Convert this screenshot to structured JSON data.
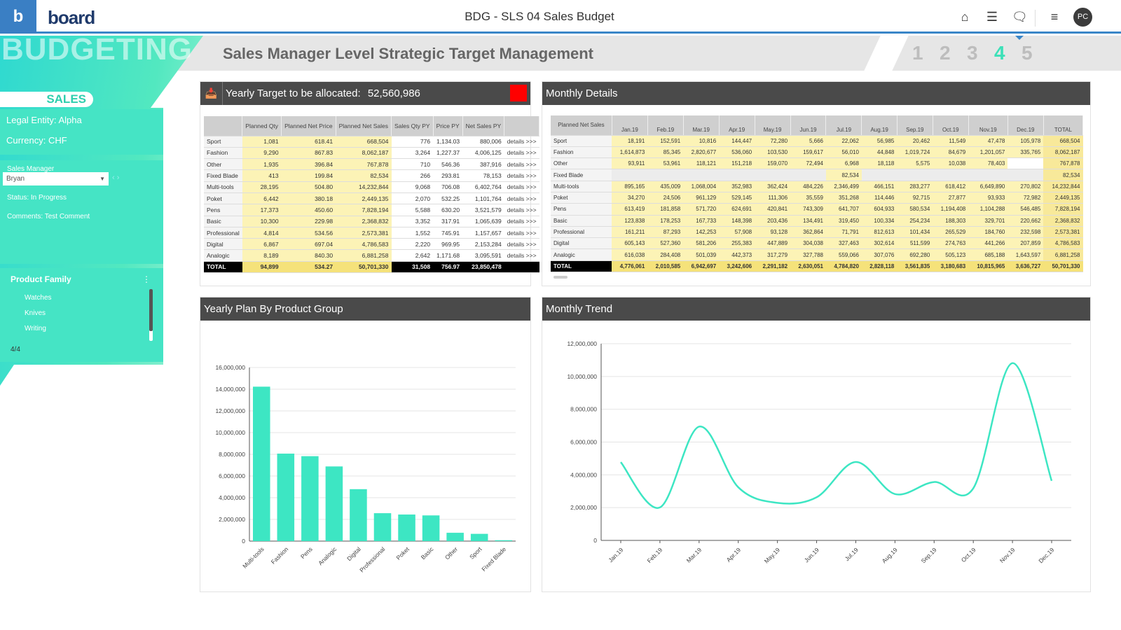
{
  "header": {
    "logo_letter": "b",
    "brand": "board",
    "title": "BDG - SLS 04 Sales Budget",
    "avatar": "PC"
  },
  "banner": {
    "section": "BUDGETING",
    "page_title": "Sales Manager Level Strategic Target Management",
    "steps": [
      "1",
      "2",
      "3",
      "4",
      "5"
    ],
    "active_step": "4"
  },
  "sidebar": {
    "tab": "SALES",
    "legal_entity": "Legal Entity: Alpha",
    "currency": "Currency:  CHF",
    "sales_manager_label": "Sales Manager",
    "sales_manager_value": "Bryan",
    "status": "Status:  In Progress",
    "comments": "Comments: Test Comment",
    "product_family_title": "Product Family",
    "product_family_items": [
      "Watches",
      "Knives",
      "Writing"
    ],
    "pager": "4/4"
  },
  "colors": {
    "accent": "#45e4c5",
    "bar": "#3de6c3",
    "header_blue": "#3a86c8"
  },
  "yearly_target": {
    "label": "Yearly Target to be allocated:",
    "value": "52,560,986",
    "columns": [
      "",
      "Planned Qty",
      "Planned Net Price",
      "Planned Net Sales",
      "Sales Qty PY",
      "Price PY",
      "Net Sales PY",
      ""
    ],
    "link": "details >>>",
    "rows": [
      [
        "Sport",
        "1,081",
        "618.41",
        "668,504",
        "776",
        "1,134.03",
        "880,006"
      ],
      [
        "Fashion",
        "9,290",
        "867.83",
        "8,062,187",
        "3,264",
        "1,227.37",
        "4,006,125"
      ],
      [
        "Other",
        "1,935",
        "396.84",
        "767,878",
        "710",
        "546.36",
        "387,916"
      ],
      [
        "Fixed Blade",
        "413",
        "199.84",
        "82,534",
        "266",
        "293.81",
        "78,153"
      ],
      [
        "Multi-tools",
        "28,195",
        "504.80",
        "14,232,844",
        "9,068",
        "706.08",
        "6,402,764"
      ],
      [
        "Poket",
        "6,442",
        "380.18",
        "2,449,135",
        "2,070",
        "532.25",
        "1,101,764"
      ],
      [
        "Pens",
        "17,373",
        "450.60",
        "7,828,194",
        "5,588",
        "630.20",
        "3,521,579"
      ],
      [
        "Basic",
        "10,300",
        "229.98",
        "2,368,832",
        "3,352",
        "317.91",
        "1,065,639"
      ],
      [
        "Professional",
        "4,814",
        "534.56",
        "2,573,381",
        "1,552",
        "745.91",
        "1,157,657"
      ],
      [
        "Digital",
        "6,867",
        "697.04",
        "4,786,583",
        "2,220",
        "969.95",
        "2,153,284"
      ],
      [
        "Analogic",
        "8,189",
        "840.30",
        "6,881,258",
        "2,642",
        "1,171.68",
        "3,095,591"
      ]
    ],
    "total": [
      "TOTAL",
      "94,899",
      "534.27",
      "50,701,330",
      "31,508",
      "756.97",
      "23,850,478"
    ]
  },
  "monthly_details": {
    "title": "Monthly Details",
    "columns": [
      "Planned Net Sales",
      "Jan.19",
      "Feb.19",
      "Mar.19",
      "Apr.19",
      "May.19",
      "Jun.19",
      "Jul.19",
      "Aug.19",
      "Sep.19",
      "Oct.19",
      "Nov.19",
      "Dec.19",
      "TOTAL"
    ],
    "rows": [
      [
        "Sport",
        "18,191",
        "152,591",
        "10,816",
        "144,447",
        "72,280",
        "5,666",
        "22,062",
        "56,985",
        "20,462",
        "11,549",
        "47,478",
        "105,978",
        "668,504"
      ],
      [
        "Fashion",
        "1,614,873",
        "85,345",
        "2,820,677",
        "536,060",
        "103,530",
        "159,617",
        "56,010",
        "44,848",
        "1,019,724",
        "84,679",
        "1,201,057",
        "335,765",
        "8,062,187"
      ],
      [
        "Other",
        "93,911",
        "53,961",
        "118,121",
        "151,218",
        "159,070",
        "72,494",
        "6,968",
        "18,118",
        "5,575",
        "10,038",
        "78,403",
        "",
        "767,878"
      ],
      [
        "Fixed Blade",
        "",
        "",
        "",
        "",
        "",
        "",
        "82,534",
        "",
        "",
        "",
        "",
        "",
        "82,534"
      ],
      [
        "Multi-tools",
        "895,165",
        "435,009",
        "1,068,004",
        "352,983",
        "362,424",
        "484,226",
        "2,346,499",
        "466,151",
        "283,277",
        "618,412",
        "6,649,890",
        "270,802",
        "14,232,844"
      ],
      [
        "Poket",
        "34,270",
        "24,506",
        "961,129",
        "529,145",
        "111,306",
        "35,559",
        "351,268",
        "114,446",
        "92,715",
        "27,877",
        "93,933",
        "72,982",
        "2,449,135"
      ],
      [
        "Pens",
        "613,419",
        "181,858",
        "571,720",
        "624,691",
        "420,841",
        "743,309",
        "641,707",
        "604,933",
        "580,534",
        "1,194,408",
        "1,104,288",
        "546,485",
        "7,828,194"
      ],
      [
        "Basic",
        "123,838",
        "178,253",
        "167,733",
        "148,398",
        "203,436",
        "134,491",
        "319,450",
        "100,334",
        "254,234",
        "188,303",
        "329,701",
        "220,662",
        "2,368,832"
      ],
      [
        "Professional",
        "161,211",
        "87,293",
        "142,253",
        "57,908",
        "93,128",
        "362,864",
        "71,791",
        "812,613",
        "101,434",
        "265,529",
        "184,760",
        "232,598",
        "2,573,381"
      ],
      [
        "Digital",
        "605,143",
        "527,360",
        "581,206",
        "255,383",
        "447,889",
        "304,038",
        "327,463",
        "302,614",
        "511,599",
        "274,763",
        "441,266",
        "207,859",
        "4,786,583"
      ],
      [
        "Analogic",
        "616,038",
        "284,408",
        "501,039",
        "442,373",
        "317,279",
        "327,788",
        "559,066",
        "307,076",
        "692,280",
        "505,123",
        "685,188",
        "1,643,597",
        "6,881,258"
      ]
    ],
    "total": [
      "TOTAL",
      "4,776,061",
      "2,010,585",
      "6,942,697",
      "3,242,606",
      "2,291,182",
      "2,630,051",
      "4,784,820",
      "2,828,118",
      "3,561,835",
      "3,180,683",
      "10,815,965",
      "3,636,727",
      "50,701,330"
    ]
  },
  "chart_data": [
    {
      "type": "bar",
      "title": "Yearly Plan By Product Group",
      "categories": [
        "Multi-tools",
        "Fashion",
        "Pens",
        "Analogic",
        "Digital",
        "Professional",
        "Poket",
        "Basic",
        "Other",
        "Sport",
        "Fixed Blade"
      ],
      "values": [
        14232844,
        8062187,
        7828194,
        6881258,
        4786583,
        2573381,
        2449135,
        2368832,
        767878,
        668504,
        82534
      ],
      "ylim": [
        0,
        16000000
      ],
      "yticks": [
        "0",
        "2,000,000",
        "4,000,000",
        "6,000,000",
        "8,000,000",
        "10,000,000",
        "12,000,000",
        "14,000,000",
        "16,000,000"
      ],
      "grid": true
    },
    {
      "type": "line",
      "title": "Monthly Trend",
      "categories": [
        "Jan.19",
        "Feb.19",
        "Mar.19",
        "Apr.19",
        "May.19",
        "Jun.19",
        "Jul.19",
        "Aug.19",
        "Sep.19",
        "Oct.19",
        "Nov.19",
        "Dec.19"
      ],
      "values": [
        4776061,
        2010585,
        6942697,
        3242606,
        2291182,
        2630051,
        4784820,
        2828118,
        3561835,
        3180683,
        10815965,
        3636727
      ],
      "ylim": [
        0,
        12000000
      ],
      "yticks": [
        "0",
        "2,000,000",
        "4,000,000",
        "6,000,000",
        "8,000,000",
        "10,000,000",
        "12,000,000"
      ],
      "grid": true
    }
  ]
}
